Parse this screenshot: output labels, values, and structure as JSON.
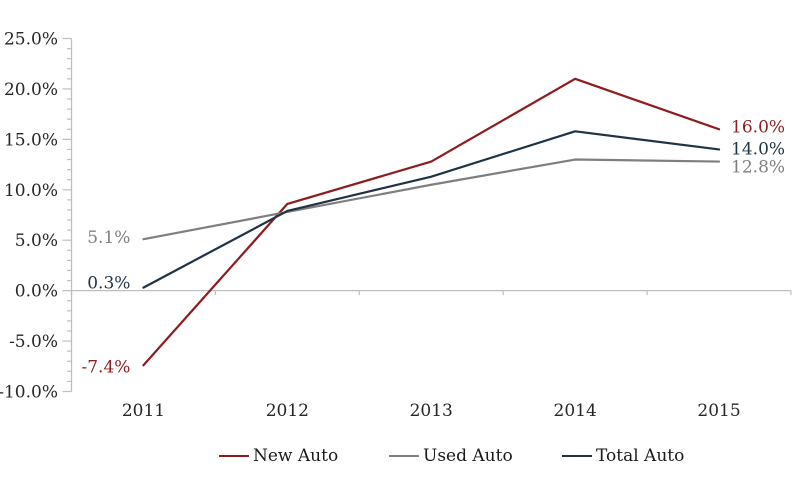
{
  "chart_data": {
    "type": "line",
    "categories": [
      "2011",
      "2012",
      "2013",
      "2014",
      "2015"
    ],
    "series": [
      {
        "name": "New Auto",
        "color": "#8C1C1E",
        "values": [
          -7.4,
          8.6,
          12.8,
          21.0,
          16.0
        ],
        "start_label": "-7.4%",
        "end_label": "16.0%"
      },
      {
        "name": "Used Auto",
        "color": "#7F7F7F",
        "values": [
          5.1,
          7.8,
          10.5,
          13.0,
          12.8
        ],
        "start_label": "5.1%",
        "end_label": "12.8%"
      },
      {
        "name": "Total Auto",
        "color": "#1F3345",
        "values": [
          0.3,
          7.9,
          11.3,
          15.8,
          14.0
        ],
        "start_label": "0.3%",
        "end_label": "14.0%"
      }
    ],
    "title": "",
    "xlabel": "",
    "ylabel": "",
    "ylim": [
      -10,
      25
    ],
    "y_major_step": 5,
    "y_minor_step": 1,
    "y_tick_labels": [
      "-10.0%",
      "-5.0%",
      "0.0%",
      "5.0%",
      "10.0%",
      "15.0%",
      "20.0%",
      "25.0%"
    ],
    "grid": false,
    "zero_axis_line": true,
    "legend_position": "bottom",
    "axis_color": "#BFBFBF",
    "text_color": "#262626"
  }
}
